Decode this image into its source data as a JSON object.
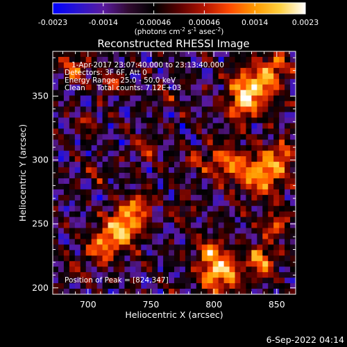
{
  "colorbar": {
    "ticks": [
      "-0.0023",
      "-0.0014",
      "-0.00046",
      "0.00046",
      "0.0014",
      "0.0023"
    ],
    "unit_parts": [
      "(photons cm",
      "-2",
      " s",
      "-1",
      " asec",
      "-2",
      ")"
    ],
    "colors": [
      "#0000ff",
      "#2a14d0",
      "#5a1aa0",
      "#300a30",
      "#000000",
      "#5a0000",
      "#b41400",
      "#ff4a00",
      "#ff9a00",
      "#ffd040",
      "#ffffff"
    ]
  },
  "plot": {
    "title": "Reconstructed RHESSI Image",
    "xlabel": "Heliocentric X (arcsec)",
    "ylabel": "Heliocentric Y (arcsec)",
    "x_ticks": [
      "700",
      "750",
      "800",
      "850"
    ],
    "y_ticks": [
      "200",
      "250",
      "300",
      "350"
    ],
    "x_range": [
      672,
      865
    ],
    "y_range": [
      195,
      385
    ],
    "annotations": [
      "1-Apr-2017 23:07:40.000 to 23:13:40.000",
      "Detectors: 3F 6F, Att 0",
      "Energy Range: 25.0 - 50.0 keV",
      "Clean     Total counts: 7.12E+03"
    ],
    "peak_label": "Position of Peak = [824,347]",
    "peak_xy": [
      824,
      347
    ]
  },
  "footer": {
    "timestamp": "6-Sep-2022 04:14"
  }
}
